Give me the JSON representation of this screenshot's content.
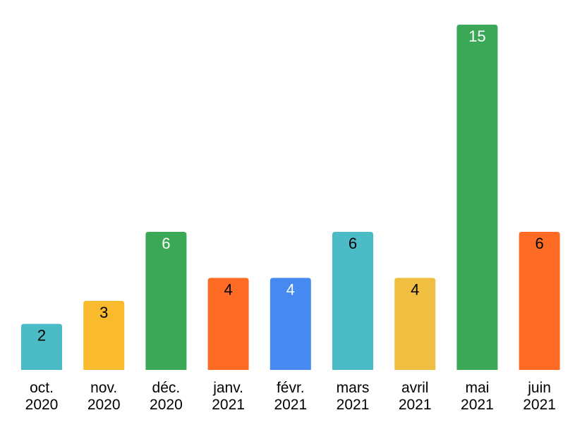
{
  "chart_data": {
    "type": "bar",
    "categories": [
      [
        "oct.",
        "2020"
      ],
      [
        "nov.",
        "2020"
      ],
      [
        "déc.",
        "2020"
      ],
      [
        "janv.",
        "2021"
      ],
      [
        "févr.",
        "2021"
      ],
      [
        "mars",
        "2021"
      ],
      [
        "avril",
        "2021"
      ],
      [
        "mai",
        "2021"
      ],
      [
        "juin",
        "2021"
      ]
    ],
    "values": [
      2,
      3,
      6,
      4,
      4,
      6,
      4,
      15,
      6
    ],
    "bar_colors": [
      "#4BBCC5",
      "#F9BA2E",
      "#3BA857",
      "#FD6B24",
      "#4689F0",
      "#4BBCC5",
      "#F0BF42",
      "#3BA857",
      "#FD6B24"
    ],
    "label_colors": [
      "#000000",
      "#000000",
      "#ffffff",
      "#000000",
      "#ffffff",
      "#000000",
      "#000000",
      "#ffffff",
      "#000000"
    ],
    "data_labels": true,
    "ylim": [
      0,
      15
    ],
    "grid": false,
    "title": "",
    "xlabel": "",
    "ylabel": ""
  }
}
